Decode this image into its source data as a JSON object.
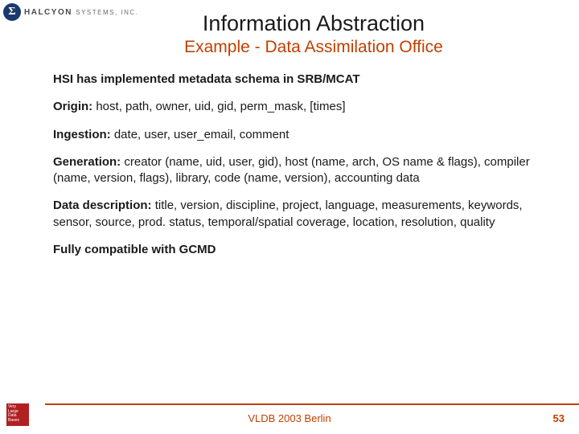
{
  "logo": {
    "symbol": "Σ",
    "name": "HALCYON",
    "suffix": "SYSTEMS, INC."
  },
  "title": "Information Abstraction",
  "subtitle": "Example - Data Assimilation Office",
  "items": [
    {
      "label": "HSI has implemented metadata schema in SRB/MCAT",
      "text": ""
    },
    {
      "label": "Origin:",
      "text": " host, path, owner, uid, gid, perm_mask, [times]"
    },
    {
      "label": "Ingestion:",
      "text": " date, user, user_email, comment"
    },
    {
      "label": "Generation:",
      "text": " creator (name, uid, user, gid), host (name, arch, OS name & flags), compiler (name, version, flags), library, code (name, version), accounting data"
    },
    {
      "label": "Data description:",
      "text": " title, version, discipline, project, language, measurements, keywords, sensor, source, prod. status, temporal/spatial coverage, location, resolution, quality"
    },
    {
      "label": "Fully compatible with GCMD",
      "text": ""
    }
  ],
  "footer": {
    "badge": "Very Large Data Bases",
    "text": "VLDB 2003 Berlin",
    "page": "53"
  },
  "colors": {
    "accent": "#c04000",
    "text": "#1a1a1a",
    "logo_bg": "#1a3a6e",
    "badge_bg": "#b02020"
  }
}
